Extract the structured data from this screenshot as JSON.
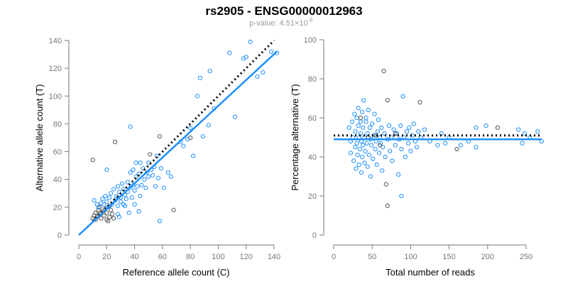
{
  "title": "rs2905 - ENSG00000012963",
  "subtitle_prefix": "p-value: 4.51×10",
  "subtitle_exp": "-5",
  "colors": {
    "blue": "#1e90ff",
    "grey": "#555555",
    "dotted": "#000000"
  },
  "chart_data": [
    {
      "type": "scatter",
      "xlabel": "Reference allele count (C)",
      "ylabel": "Alternative allele count (T)",
      "xlim": [
        0,
        140
      ],
      "ylim": [
        0,
        140
      ],
      "xticks": [
        0,
        20,
        40,
        60,
        80,
        100,
        120,
        140
      ],
      "yticks": [
        0,
        20,
        40,
        60,
        80,
        100,
        120,
        140
      ],
      "fit_line": {
        "x": [
          0,
          142
        ],
        "y": [
          0,
          132
        ]
      },
      "reference_line": {
        "x": [
          10,
          140
        ],
        "y": [
          10,
          140
        ]
      },
      "points": [
        [
          10,
          12,
          "g"
        ],
        [
          11,
          14,
          "g"
        ],
        [
          12,
          16,
          "g"
        ],
        [
          12,
          11,
          "g"
        ],
        [
          13,
          13,
          "g"
        ],
        [
          14,
          18,
          "g"
        ],
        [
          15,
          15,
          "g"
        ],
        [
          15,
          20,
          "g"
        ],
        [
          16,
          12,
          "g"
        ],
        [
          17,
          17,
          "g"
        ],
        [
          18,
          14,
          "g"
        ],
        [
          19,
          19,
          "g"
        ],
        [
          20,
          11,
          "g"
        ],
        [
          20,
          16,
          "g"
        ],
        [
          21,
          10,
          "g"
        ],
        [
          22,
          13,
          "g"
        ],
        [
          22,
          21,
          "g"
        ],
        [
          23,
          18,
          "g"
        ],
        [
          24,
          15,
          "g"
        ],
        [
          25,
          12,
          "g"
        ],
        [
          13,
          22,
          "b"
        ],
        [
          11,
          25,
          "b"
        ],
        [
          14,
          20,
          "b"
        ],
        [
          16,
          23,
          "b"
        ],
        [
          17,
          26,
          "b"
        ],
        [
          18,
          22,
          "b"
        ],
        [
          19,
          28,
          "b"
        ],
        [
          20,
          24,
          "b"
        ],
        [
          21,
          20,
          "b"
        ],
        [
          22,
          27,
          "b"
        ],
        [
          23,
          30,
          "b"
        ],
        [
          24,
          22,
          "b"
        ],
        [
          25,
          33,
          "b"
        ],
        [
          26,
          25,
          "b"
        ],
        [
          27,
          28,
          "b"
        ],
        [
          28,
          21,
          "b"
        ],
        [
          28,
          35,
          "b"
        ],
        [
          29,
          31,
          "b"
        ],
        [
          30,
          24,
          "b"
        ],
        [
          30,
          27,
          "b"
        ],
        [
          31,
          37,
          "b"
        ],
        [
          32,
          22,
          "b"
        ],
        [
          32,
          33,
          "b"
        ],
        [
          33,
          29,
          "b"
        ],
        [
          34,
          26,
          "b"
        ],
        [
          35,
          38,
          "b"
        ],
        [
          35,
          31,
          "b"
        ],
        [
          36,
          16,
          "b"
        ],
        [
          37,
          34,
          "b"
        ],
        [
          38,
          27,
          "b"
        ],
        [
          39,
          36,
          "b"
        ],
        [
          40,
          22,
          "b"
        ],
        [
          40,
          32,
          "b"
        ],
        [
          41,
          42,
          "b"
        ],
        [
          42,
          35,
          "b"
        ],
        [
          43,
          44,
          "b"
        ],
        [
          44,
          28,
          "b"
        ],
        [
          45,
          36,
          "b"
        ],
        [
          46,
          48,
          "b"
        ],
        [
          47,
          40,
          "b"
        ],
        [
          48,
          34,
          "b"
        ],
        [
          49,
          45,
          "b"
        ],
        [
          50,
          42,
          "b"
        ],
        [
          50,
          52,
          "b"
        ],
        [
          51,
          58,
          "g"
        ],
        [
          52,
          47,
          "b"
        ],
        [
          53,
          43,
          "b"
        ],
        [
          54,
          49,
          "b"
        ],
        [
          55,
          35,
          "b"
        ],
        [
          56,
          57,
          "b"
        ],
        [
          57,
          41,
          "b"
        ],
        [
          59,
          48,
          "b"
        ],
        [
          61,
          34,
          "b"
        ],
        [
          64,
          45,
          "b"
        ],
        [
          66,
          42,
          "b"
        ],
        [
          39,
          47,
          "b"
        ],
        [
          41,
          52,
          "b"
        ],
        [
          44,
          52,
          "b"
        ],
        [
          37,
          45,
          "b"
        ],
        [
          33,
          21,
          "b"
        ],
        [
          28,
          15,
          "b"
        ],
        [
          29,
          13,
          "b"
        ],
        [
          10,
          54,
          "g"
        ],
        [
          26,
          67,
          "g"
        ],
        [
          37,
          78,
          "b"
        ],
        [
          20,
          47,
          "b"
        ],
        [
          58,
          71,
          "g"
        ],
        [
          68,
          18,
          "g"
        ],
        [
          58,
          10,
          "b"
        ],
        [
          43,
          17,
          "b"
        ],
        [
          85,
          100,
          "b"
        ],
        [
          87,
          113,
          "b"
        ],
        [
          94,
          118,
          "b"
        ],
        [
          97,
          91,
          "b"
        ],
        [
          93,
          79,
          "b"
        ],
        [
          89,
          71,
          "b"
        ],
        [
          112,
          85,
          "b"
        ],
        [
          108,
          131,
          "b"
        ],
        [
          118,
          127,
          "b"
        ],
        [
          120,
          128,
          "b"
        ],
        [
          123,
          139,
          "b"
        ],
        [
          128,
          114,
          "b"
        ],
        [
          132,
          117,
          "b"
        ],
        [
          138,
          132,
          "b"
        ],
        [
          142,
          131,
          "b"
        ],
        [
          80,
          70,
          "g"
        ],
        [
          82,
          57,
          "b"
        ],
        [
          78,
          69,
          "b"
        ],
        [
          75,
          64,
          "b"
        ],
        [
          73,
          67,
          "b"
        ],
        [
          80,
          77,
          "b"
        ]
      ]
    },
    {
      "type": "scatter",
      "xlabel": "Total number of reads",
      "ylabel": "Percentage alternative (T)",
      "xlim": [
        0,
        270
      ],
      "ylim": [
        0,
        100
      ],
      "xticks": [
        0,
        50,
        100,
        150,
        200,
        250
      ],
      "yticks": [
        0,
        20,
        40,
        60,
        80,
        100
      ],
      "fit_line": {
        "x": [
          0,
          270
        ],
        "y": [
          49,
          49
        ]
      },
      "reference_line": {
        "x": [
          0,
          270
        ],
        "y": [
          51,
          51
        ]
      },
      "points": [
        [
          20,
          55,
          "b"
        ],
        [
          22,
          48,
          "b"
        ],
        [
          22,
          42,
          "b"
        ],
        [
          24,
          58,
          "b"
        ],
        [
          25,
          50,
          "b"
        ],
        [
          26,
          38,
          "b"
        ],
        [
          27,
          62,
          "b"
        ],
        [
          28,
          45,
          "b"
        ],
        [
          28,
          53,
          "b"
        ],
        [
          29,
          34,
          "b"
        ],
        [
          30,
          60,
          "b"
        ],
        [
          30,
          47,
          "b"
        ],
        [
          31,
          41,
          "b"
        ],
        [
          32,
          56,
          "b"
        ],
        [
          32,
          65,
          "b"
        ],
        [
          33,
          50,
          "b"
        ],
        [
          33,
          36,
          "b"
        ],
        [
          34,
          44,
          "b"
        ],
        [
          35,
          58,
          "b"
        ],
        [
          35,
          52,
          "b"
        ],
        [
          36,
          32,
          "b"
        ],
        [
          36,
          48,
          "b"
        ],
        [
          37,
          63,
          "b"
        ],
        [
          37,
          40,
          "b"
        ],
        [
          38,
          55,
          "b"
        ],
        [
          38,
          46,
          "b"
        ],
        [
          39,
          69,
          "b"
        ],
        [
          40,
          50,
          "b"
        ],
        [
          40,
          37,
          "b"
        ],
        [
          41,
          43,
          "b"
        ],
        [
          42,
          58,
          "b"
        ],
        [
          42,
          60,
          "b"
        ],
        [
          43,
          47,
          "b"
        ],
        [
          44,
          52,
          "b"
        ],
        [
          44,
          35,
          "b"
        ],
        [
          45,
          64,
          "b"
        ],
        [
          46,
          41,
          "b"
        ],
        [
          47,
          55,
          "b"
        ],
        [
          48,
          49,
          "b"
        ],
        [
          48,
          30,
          "b"
        ],
        [
          49,
          46,
          "b"
        ],
        [
          50,
          57,
          "b"
        ],
        [
          51,
          39,
          "b"
        ],
        [
          52,
          51,
          "b"
        ],
        [
          53,
          62,
          "b"
        ],
        [
          54,
          44,
          "b"
        ],
        [
          55,
          48,
          "b"
        ],
        [
          56,
          36,
          "b"
        ],
        [
          57,
          53,
          "b"
        ],
        [
          58,
          59,
          "b"
        ],
        [
          59,
          42,
          "b"
        ],
        [
          60,
          50,
          "b"
        ],
        [
          61,
          47,
          "b"
        ],
        [
          62,
          55,
          "b"
        ],
        [
          63,
          33,
          "b"
        ],
        [
          64,
          45,
          "b"
        ],
        [
          65,
          84,
          "g"
        ],
        [
          66,
          52,
          "b"
        ],
        [
          67,
          40,
          "b"
        ],
        [
          68,
          26,
          "g"
        ],
        [
          70,
          15,
          "g"
        ],
        [
          70,
          69,
          "g"
        ],
        [
          70,
          49,
          "b"
        ],
        [
          72,
          56,
          "b"
        ],
        [
          73,
          43,
          "b"
        ],
        [
          75,
          50,
          "b"
        ],
        [
          76,
          38,
          "b"
        ],
        [
          78,
          54,
          "b"
        ],
        [
          80,
          46,
          "b"
        ],
        [
          82,
          52,
          "b"
        ],
        [
          84,
          31,
          "b"
        ],
        [
          85,
          49,
          "b"
        ],
        [
          87,
          56,
          "b"
        ],
        [
          88,
          20,
          "b"
        ],
        [
          88,
          44,
          "b"
        ],
        [
          90,
          71,
          "b"
        ],
        [
          91,
          50,
          "b"
        ],
        [
          93,
          40,
          "b"
        ],
        [
          95,
          53,
          "b"
        ],
        [
          97,
          47,
          "b"
        ],
        [
          98,
          55,
          "b"
        ],
        [
          100,
          43,
          "b"
        ],
        [
          102,
          51,
          "b"
        ],
        [
          104,
          57,
          "b"
        ],
        [
          106,
          48,
          "b"
        ],
        [
          108,
          45,
          "b"
        ],
        [
          110,
          53,
          "b"
        ],
        [
          112,
          68,
          "g"
        ],
        [
          113,
          50,
          "b"
        ],
        [
          118,
          54,
          "b"
        ],
        [
          125,
          48,
          "b"
        ],
        [
          135,
          46,
          "b"
        ],
        [
          140,
          52,
          "b"
        ],
        [
          145,
          47,
          "b"
        ],
        [
          150,
          50,
          "b"
        ],
        [
          160,
          44,
          "g"
        ],
        [
          165,
          46,
          "b"
        ],
        [
          175,
          48,
          "b"
        ],
        [
          185,
          55,
          "b"
        ],
        [
          185,
          45,
          "b"
        ],
        [
          198,
          56,
          "b"
        ],
        [
          213,
          55,
          "g"
        ],
        [
          240,
          54,
          "b"
        ],
        [
          245,
          47,
          "b"
        ],
        [
          248,
          52,
          "b"
        ],
        [
          255,
          50,
          "b"
        ],
        [
          265,
          53,
          "b"
        ],
        [
          270,
          48,
          "b"
        ],
        [
          60,
          46,
          "g"
        ],
        [
          45,
          50,
          "g"
        ],
        [
          55,
          51,
          "g"
        ],
        [
          35,
          60,
          "g"
        ],
        [
          80,
          52,
          "g"
        ]
      ]
    }
  ]
}
